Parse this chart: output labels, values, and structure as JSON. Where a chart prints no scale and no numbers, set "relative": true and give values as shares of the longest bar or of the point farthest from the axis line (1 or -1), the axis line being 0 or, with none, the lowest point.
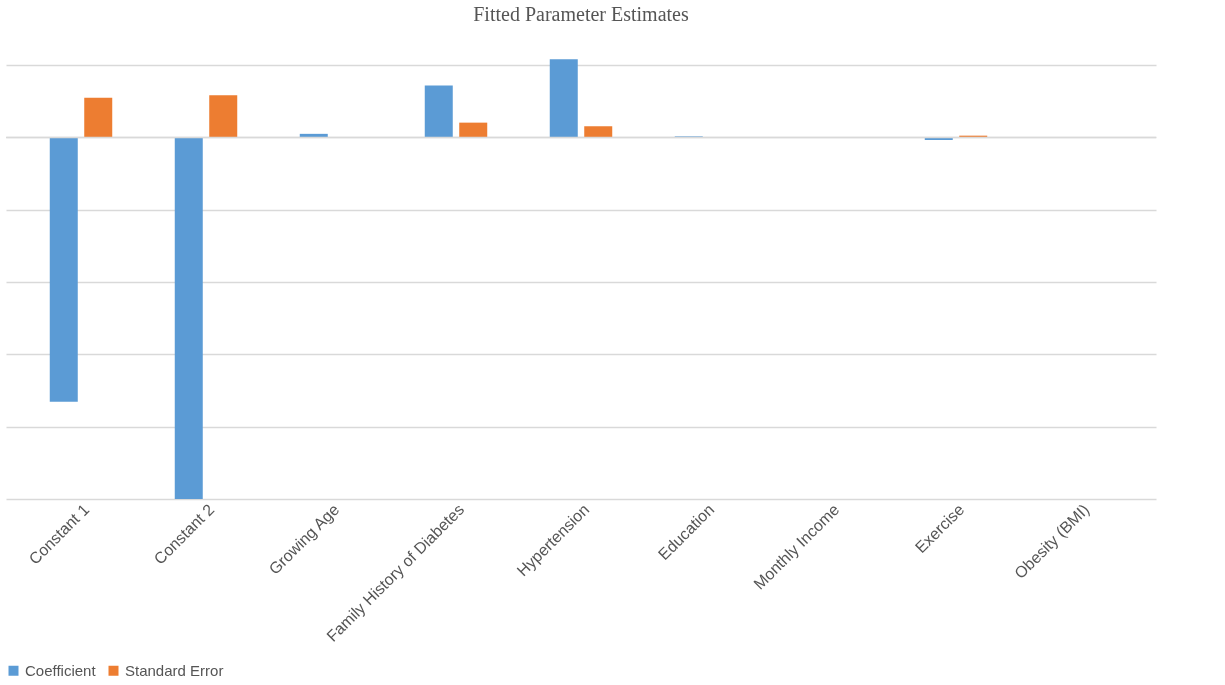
{
  "chart_data": {
    "type": "bar",
    "title": "Fitted Parameter Estimates",
    "relative": true,
    "categories": [
      "Constant 1",
      "Constant 2",
      "Growing Age",
      "Family History of Diabetes",
      "Hypertension",
      "Education",
      "Monthly Income",
      "Exercise",
      "Obesity (BMI)"
    ],
    "series": [
      {
        "name": "Coefficient",
        "color": "#5b9bd5",
        "values": [
          -0.731,
          -1,
          0.01,
          0.144,
          0.216,
          0.003,
          0,
          -0.007,
          0
        ]
      },
      {
        "name": "Standard Error",
        "color": "#ed7d31",
        "values": [
          0.11,
          0.117,
          0,
          0.041,
          0.031,
          0,
          0,
          0.005,
          0
        ]
      }
    ],
    "grid": "y",
    "legend": "bottom"
  }
}
